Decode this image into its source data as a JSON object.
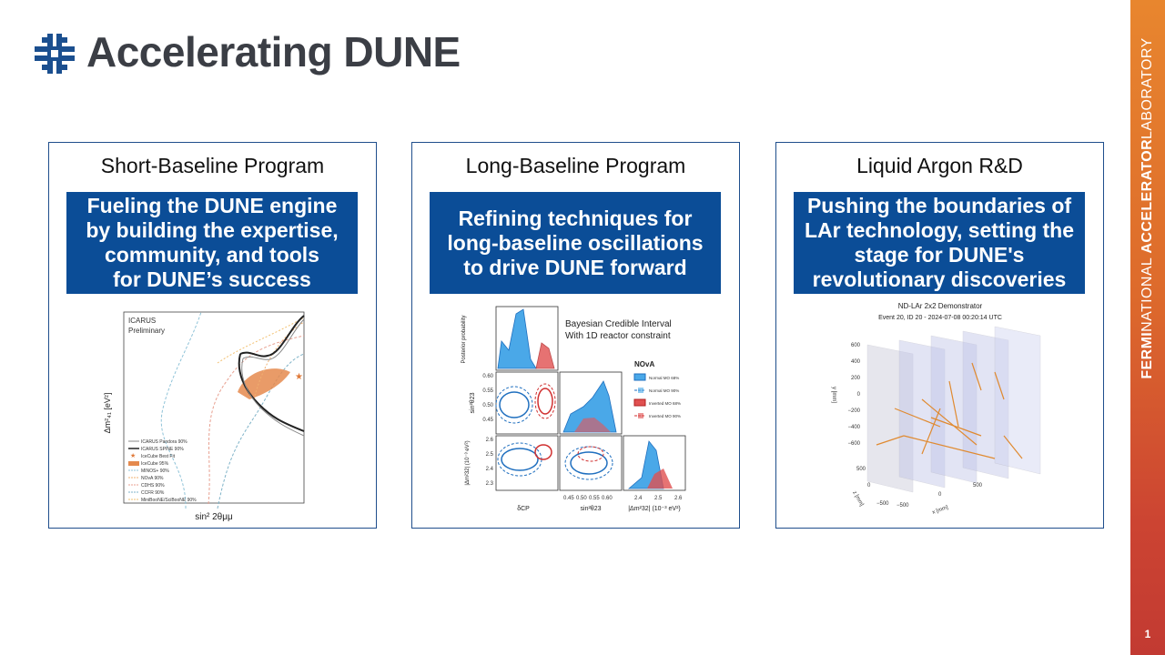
{
  "slide": {
    "title": "Accelerating DUNE",
    "sidebar_bold": "FERMI",
    "sidebar_mid": "NATIONAL ",
    "sidebar_bold2": "ACCELERATOR",
    "sidebar_end": "LABORATORY",
    "page_number": "1"
  },
  "panels": [
    {
      "title": "Short-Baseline Program",
      "box": "Fueling the DUNE engine\nby building the expertise,\ncommunity, and tools\nfor DUNE’s success",
      "figure": {
        "label1": "ICARUS",
        "label2": "Preliminary",
        "ylabel": "Δm²₄₁ [eV²]",
        "xlabel": "sin² 2θμμ",
        "legend": [
          "ICARUS Pandora 90%",
          "ICARUS SPINE 90%",
          "IceCube Best Fit",
          "IceCube 95%",
          "MINOS+ 90%",
          "NOvA 90%",
          "CDHS 90%",
          "CCFR 90%",
          "MiniBooNE/SciBooNE 90%"
        ]
      }
    },
    {
      "title": "Long-Baseline Program",
      "box": "Refining techniques for\nlong-baseline oscillations\nto drive DUNE forward",
      "figure": {
        "heading1": "Bayesian Credible Interval",
        "heading2": "With 1D reactor constraint",
        "legend_title": "NOvA",
        "legend": [
          "Normal MO 68%",
          "Normal MO 90%",
          "Inverted MO 68%",
          "Inverted MO 90%"
        ],
        "xlabel1": "δCP",
        "xlabel2": "sin²θ23",
        "xlabel3": "|Δm²32| (10⁻³ eV²)",
        "ylabel1": "Posterior probability",
        "ylabel2": "sin²θ23",
        "ylabel3": "|Δm²32| (10⁻³ eV²)",
        "yticks2": [
          "0.60",
          "0.55",
          "0.50",
          "0.45"
        ],
        "yticks3": [
          "2.6",
          "2.5",
          "2.4",
          "2.3"
        ],
        "xticks2": [
          "0.45",
          "0.50",
          "0.55",
          "0.60"
        ],
        "xticks3": [
          "2.4",
          "2.5",
          "2.6"
        ]
      }
    },
    {
      "title": "Liquid Argon R&D",
      "box": "Pushing the boundaries of\nLAr technology, setting the\nstage for DUNE's\nrevolutionary discoveries",
      "figure": {
        "heading1": "ND-LAr 2x2 Demonstrator",
        "heading2": "Event 20, ID 20 - 2024-07-08 00:20:14 UTC",
        "yticks": [
          "600",
          "400",
          "200",
          "0",
          "−200",
          "−400",
          "−600"
        ],
        "ylabel": "y [mm]",
        "zlabel": "z [mm]",
        "xlabel": "x [mm]",
        "zticks": [
          "500",
          "0",
          "−500"
        ],
        "xticks": [
          "−500",
          "0",
          "500"
        ]
      }
    }
  ],
  "colors": {
    "title": "#3b3e45",
    "box": "#0b4d97",
    "panel_border": "#1f4e8c",
    "logo": "#1b4f8f",
    "sidebar_top": "#e8862e",
    "sidebar_bottom": "#c23a32"
  }
}
